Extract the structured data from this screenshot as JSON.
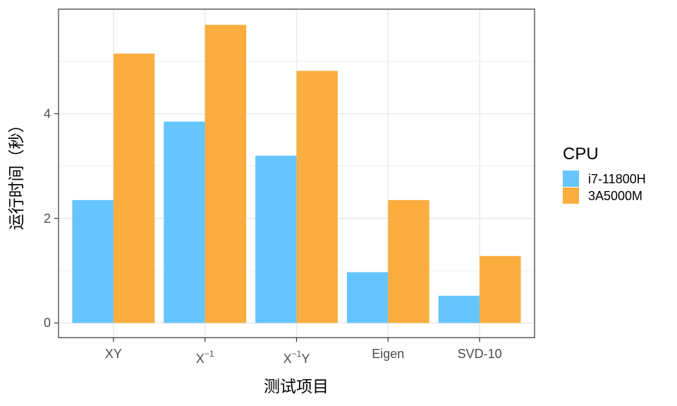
{
  "chart_data": {
    "type": "bar",
    "categories": [
      "XY",
      "X⁻¹",
      "X⁻¹Y",
      "Eigen",
      "SVD-10"
    ],
    "category_parts": [
      {
        "base": "XY",
        "sup": "",
        "after": ""
      },
      {
        "base": "X",
        "sup": "−1",
        "after": ""
      },
      {
        "base": "X",
        "sup": "−1",
        "after": "Y"
      },
      {
        "base": "Eigen",
        "sup": "",
        "after": ""
      },
      {
        "base": "SVD-10",
        "sup": "",
        "after": ""
      }
    ],
    "series": [
      {
        "name": "i7-11800H",
        "color": "#66c5ff",
        "values": [
          2.35,
          3.85,
          3.2,
          0.97,
          0.52
        ]
      },
      {
        "name": "3A5000M",
        "color": "#fbae3f",
        "values": [
          5.15,
          5.7,
          4.82,
          2.35,
          1.28
        ]
      }
    ],
    "xlabel": "测试项目",
    "ylabel": "运行时间（秒）",
    "ylim": [
      -0.28,
      6.0
    ],
    "yticks": [
      0,
      2,
      4
    ],
    "legend": {
      "title": "CPU",
      "position": "right"
    },
    "grid": true
  }
}
